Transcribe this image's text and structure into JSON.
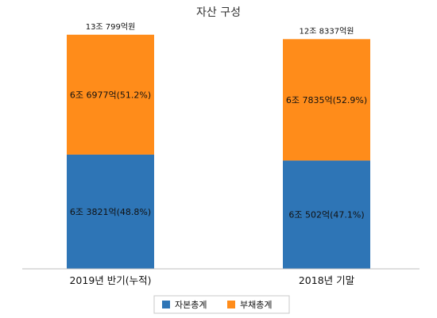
{
  "chart_data": {
    "type": "bar",
    "stacked": true,
    "title": "자산 구성",
    "categories": [
      "2019년 반기(누적)",
      "2018년 기말"
    ],
    "totals": [
      "13조 799억원",
      "12조 8337억원"
    ],
    "total_values": [
      130799,
      128337
    ],
    "series": [
      {
        "name": "자본총계",
        "color": "#2e75b6",
        "values": [
          63821,
          60502
        ],
        "labels": [
          "6조 3821억(48.8%)",
          "6조 502억(47.1%)"
        ]
      },
      {
        "name": "부채총계",
        "color": "#ff8c1a",
        "values": [
          66977,
          67835
        ],
        "labels": [
          "6조 6977억(51.2%)",
          "6조 7835억(52.9%)"
        ]
      }
    ],
    "ylim": [
      0,
      140000
    ],
    "grid": false,
    "legend_position": "bottom"
  }
}
